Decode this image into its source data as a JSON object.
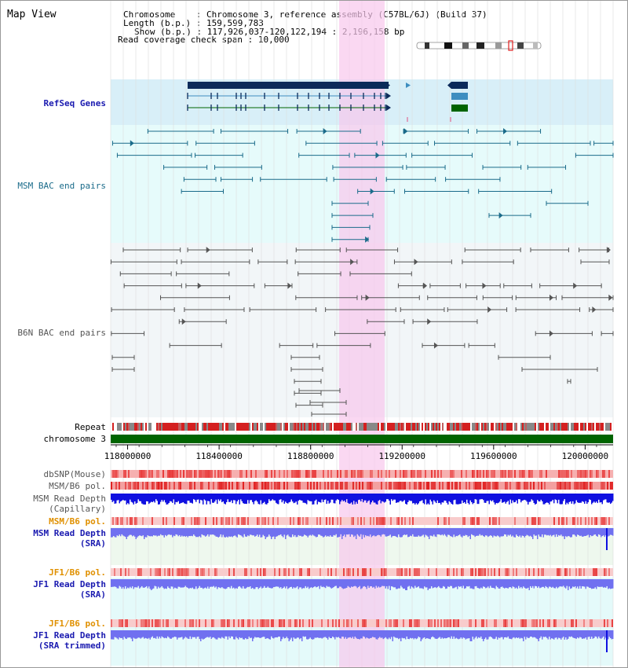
{
  "title": "Map View",
  "info": {
    "chromosome_label": "Chromosome",
    "chromosome_value": "Chromosome 3, reference assembly (C57BL/6J) (Build 37)",
    "length_label": "Length (b.p.)",
    "length_value": "159,599,783",
    "show_label": "Show (b.p.)",
    "show_value": "117,926,037-120,122,194 : 2,196,158 bp",
    "coverage_label": "Read coverage check span",
    "coverage_value": "10,000"
  },
  "tracks": {
    "refseq": "RefSeq Genes",
    "msm_bac": "MSM BAC end pairs",
    "b6n_bac": "B6N BAC end pairs",
    "repeat": "Repeat",
    "chromosome": "chromosome 3",
    "dbsnp": "dbSNP(Mouse)",
    "msm_b6_pol_1": "MSM/B6 pol.",
    "msm_depth_cap_1": "MSM Read Depth",
    "msm_depth_cap_2": "(Capillary)",
    "msm_b6_pol_2": "MSM/B6 pol.",
    "msm_depth_sra_1": "MSM Read Depth",
    "msm_depth_sra_2": "(SRA)",
    "jf1_pol_1": "JF1/B6 pol.",
    "jf1_depth_sra_1": "JF1 Read Depth",
    "jf1_depth_sra_2": "(SRA)",
    "jf1_pol_2": "JF1/B6 pol.",
    "jf1_depth_trim_1": "JF1 Read Depth",
    "jf1_depth_trim_2": "(SRA trimmed)"
  },
  "axis": {
    "ticks": [
      "118000000",
      "118400000",
      "118800000",
      "119200000",
      "119600000",
      "120000000"
    ],
    "range": [
      117926037,
      120122194
    ]
  },
  "colors": {
    "refseq_bg": "#d8eff8",
    "msm_bg": "#e6fbfb",
    "b6n_bg": "#f2f6f8",
    "highlight": "#f8c8ec",
    "gene_dark": "#0b2a5a",
    "gene_mid": "#3e8ec0",
    "gene_green": "#006400",
    "msm_pair": "#1a6b8a",
    "b6n_pair": "#555555",
    "chromosome_bar": "#006400",
    "depth_dark": "#1010e0",
    "depth_light": "#7070f0"
  }
}
